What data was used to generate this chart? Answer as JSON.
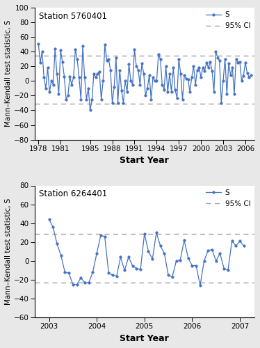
{
  "plot1": {
    "title": "Station 5760401",
    "xlim": [
      1977.5,
      2007.2
    ],
    "ylim": [
      -80,
      100
    ],
    "yticks": [
      -80,
      -60,
      -40,
      -20,
      0,
      20,
      40,
      60,
      80,
      100
    ],
    "xticks": [
      1978,
      1981,
      1985,
      1988,
      1991,
      1994,
      1997,
      2000,
      2003,
      2006
    ],
    "ci_upper": 34,
    "ci_lower": -31,
    "line_color": "#4472C4",
    "ci_color": "#A0A0A0",
    "x": [
      1978.0,
      1978.25,
      1978.5,
      1978.75,
      1979.0,
      1979.25,
      1979.5,
      1979.75,
      1980.0,
      1980.25,
      1980.5,
      1980.75,
      1981.0,
      1981.25,
      1981.5,
      1981.75,
      1982.0,
      1982.25,
      1982.5,
      1982.75,
      1983.0,
      1983.25,
      1983.5,
      1983.75,
      1984.0,
      1984.25,
      1984.5,
      1984.75,
      1985.0,
      1985.25,
      1985.5,
      1985.75,
      1986.0,
      1986.25,
      1986.5,
      1986.75,
      1987.0,
      1987.25,
      1987.5,
      1987.75,
      1988.0,
      1988.25,
      1988.5,
      1988.75,
      1989.0,
      1989.25,
      1989.5,
      1989.75,
      1990.0,
      1990.25,
      1990.5,
      1990.75,
      1991.0,
      1991.25,
      1991.5,
      1991.75,
      1992.0,
      1992.25,
      1992.5,
      1992.75,
      1993.0,
      1993.25,
      1993.5,
      1993.75,
      1994.0,
      1994.25,
      1994.5,
      1994.75,
      1995.0,
      1995.25,
      1995.5,
      1995.75,
      1996.0,
      1996.25,
      1996.5,
      1996.75,
      1997.0,
      1997.25,
      1997.5,
      1997.75,
      1998.0,
      1998.25,
      1998.5,
      1998.75,
      1999.0,
      1999.25,
      1999.5,
      1999.75,
      2000.0,
      2000.25,
      2000.5,
      2000.75,
      2001.0,
      2001.25,
      2001.5,
      2001.75,
      2002.0,
      2002.25,
      2002.5,
      2002.75,
      2003.0,
      2003.25,
      2003.5,
      2003.75,
      2004.0,
      2004.25,
      2004.5,
      2004.75,
      2005.0,
      2005.25,
      2005.5,
      2005.75,
      2006.0,
      2006.25,
      2006.5,
      2006.75
    ],
    "y": [
      51,
      25,
      40,
      5,
      -10,
      18,
      -15,
      0,
      -5,
      44,
      10,
      -18,
      42,
      26,
      6,
      -25,
      -20,
      6,
      -5,
      5,
      43,
      30,
      5,
      -25,
      48,
      5,
      -25,
      -10,
      -40,
      -25,
      10,
      5,
      10,
      13,
      -25,
      0,
      50,
      28,
      30,
      15,
      -30,
      -8,
      32,
      -30,
      15,
      -13,
      -30,
      0,
      -15,
      23,
      0,
      -5,
      43,
      20,
      15,
      -5,
      24,
      10,
      -20,
      -10,
      8,
      -25,
      5,
      0,
      0,
      36,
      30,
      -5,
      -12,
      20,
      -15,
      10,
      -15,
      18,
      -12,
      -23,
      30,
      10,
      -25,
      8,
      3,
      2,
      -15,
      5,
      20,
      -5,
      15,
      18,
      5,
      18,
      14,
      25,
      18,
      26,
      14,
      -15,
      40,
      32,
      28,
      -30,
      0,
      30,
      -18,
      24,
      8,
      18,
      -18,
      30,
      25,
      26,
      0,
      7,
      25,
      11,
      5,
      8
    ]
  },
  "plot2": {
    "title": "Station 6264401",
    "xlim": [
      2002.7,
      2007.3
    ],
    "ylim": [
      -60,
      80
    ],
    "yticks": [
      -60,
      -40,
      -20,
      0,
      20,
      40,
      60,
      80
    ],
    "xticks": [
      2003,
      2004,
      2005,
      2006,
      2007
    ],
    "ci_upper": 29,
    "ci_lower": -23,
    "line_color": "#4472C4",
    "ci_color": "#A0A0A0",
    "x": [
      2003.0,
      2003.083,
      2003.167,
      2003.25,
      2003.333,
      2003.417,
      2003.5,
      2003.583,
      2003.667,
      2003.75,
      2003.833,
      2003.917,
      2004.0,
      2004.083,
      2004.167,
      2004.25,
      2004.333,
      2004.417,
      2004.5,
      2004.583,
      2004.667,
      2004.75,
      2004.833,
      2004.917,
      2005.0,
      2005.083,
      2005.167,
      2005.25,
      2005.333,
      2005.417,
      2005.5,
      2005.583,
      2005.667,
      2005.75,
      2005.833,
      2005.917,
      2006.0,
      2006.083,
      2006.167,
      2006.25,
      2006.333,
      2006.417,
      2006.5,
      2006.583,
      2006.667,
      2006.75,
      2006.833,
      2006.917,
      2007.0,
      2007.083
    ],
    "y": [
      44,
      36,
      18,
      6,
      -12,
      -13,
      -25,
      -25,
      -18,
      -23,
      -23,
      -12,
      8,
      27,
      26,
      -13,
      -15,
      -16,
      4,
      -10,
      4,
      -5,
      -8,
      -9,
      29,
      10,
      2,
      30,
      16,
      8,
      -15,
      -17,
      0,
      1,
      22,
      3,
      -5,
      -5,
      -26,
      0,
      11,
      12,
      0,
      8,
      -8,
      -10,
      21,
      16,
      21,
      16
    ]
  },
  "ylabel": "Mann–Kendall test statistic, S",
  "xlabel": "Start Year",
  "fig_bg_color": "#E8E8E8",
  "ax_bg_color": "#FFFFFF",
  "legend_s_label": "S",
  "legend_ci_label": "95% CI"
}
